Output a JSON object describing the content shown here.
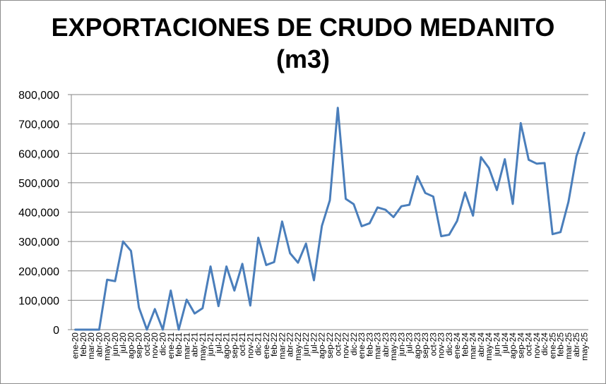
{
  "chart_data": {
    "type": "line",
    "title": "EXPORTACIONES DE CRUDO MEDANITO",
    "subtitle": "(m3)",
    "xlabel": "",
    "ylabel": "",
    "ylim": [
      0,
      800000
    ],
    "yticks": [
      0,
      100000,
      200000,
      300000,
      400000,
      500000,
      600000,
      700000,
      800000
    ],
    "ytick_labels": [
      "0",
      "100,000",
      "200,000",
      "300,000",
      "400,000",
      "500,000",
      "600,000",
      "700,000",
      "800,000"
    ],
    "grid": true,
    "legend": "none",
    "line_color": "#4a7ebb",
    "categories": [
      "ene-20",
      "feb-20",
      "mar-20",
      "abr-20",
      "may-20",
      "jun-20",
      "jul-20",
      "ago-20",
      "sep-20",
      "oct-20",
      "nov-20",
      "dic-20",
      "ene-21",
      "feb-21",
      "mar-21",
      "abr-21",
      "may-21",
      "jun-21",
      "jul-21",
      "ago-21",
      "sep-21",
      "oct-21",
      "nov-21",
      "dic-21",
      "ene-22",
      "feb-22",
      "mar-22",
      "abr-22",
      "may-22",
      "jun-22",
      "jul-22",
      "ago-22",
      "sep-22",
      "oct-22",
      "nov-22",
      "dic-22",
      "ene-23",
      "feb-23",
      "mar-23",
      "abr-23",
      "may-23",
      "jun-23",
      "jul-23",
      "ago-23",
      "sep-23",
      "oct-23",
      "nov-23",
      "dic-23",
      "ene-24",
      "feb-24",
      "mar-24",
      "abr-24",
      "may-24",
      "jun-24",
      "jul-24",
      "ago-24",
      "sep-24",
      "oct-24",
      "nov-24",
      "dic-24",
      "ene-25",
      "feb-25",
      "mar-25",
      "abr-25",
      "may-25"
    ],
    "series": [
      {
        "values": [
          0,
          0,
          0,
          0,
          170000,
          165000,
          300000,
          268000,
          75000,
          0,
          70000,
          0,
          133000,
          0,
          102000,
          55000,
          73000,
          215000,
          80000,
          215000,
          133000,
          224000,
          82000,
          313000,
          220000,
          230000,
          368000,
          260000,
          228000,
          293000,
          168000,
          353000,
          440000,
          755000,
          445000,
          427000,
          352000,
          362000,
          416000,
          408000,
          383000,
          420000,
          425000,
          522000,
          465000,
          453000,
          318000,
          323000,
          370000,
          467000,
          388000,
          587000,
          550000,
          475000,
          580000,
          428000,
          703000,
          578000,
          565000,
          567000,
          325000,
          332000,
          435000,
          590000,
          670000
        ]
      }
    ]
  }
}
